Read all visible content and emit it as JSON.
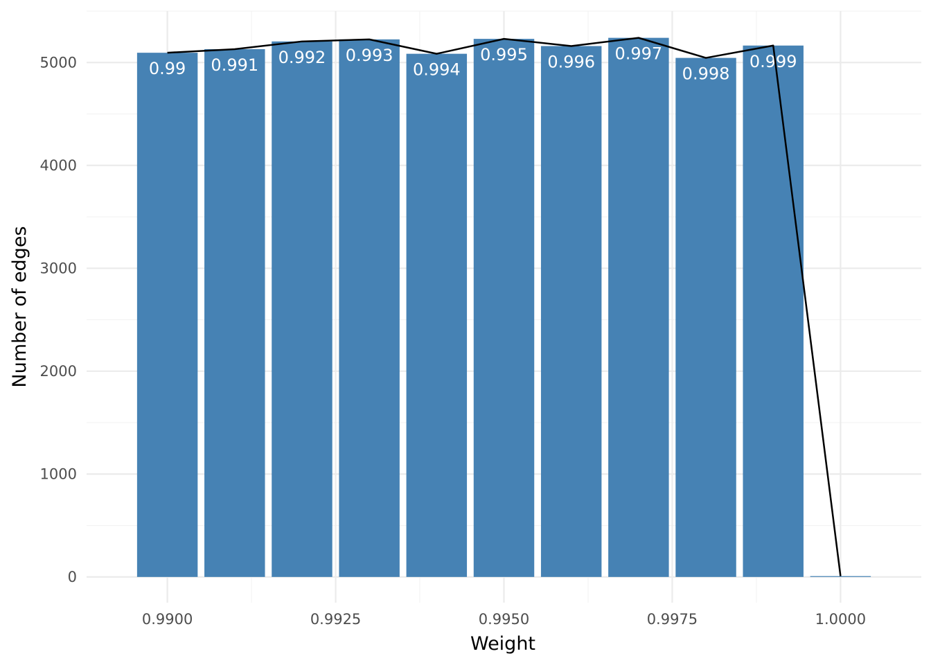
{
  "chart_data": {
    "type": "bar",
    "xlabel": "Weight",
    "ylabel": "Number of edges",
    "xlim": [
      0.9888,
      1.0012
    ],
    "ylim": [
      -250,
      5500
    ],
    "bar_width": 0.0009,
    "x_ticks": [
      {
        "value": 0.99,
        "label": "0.9900"
      },
      {
        "value": 0.9925,
        "label": "0.9925"
      },
      {
        "value": 0.995,
        "label": "0.9950"
      },
      {
        "value": 0.9975,
        "label": "0.9975"
      },
      {
        "value": 1.0,
        "label": "1.0000"
      }
    ],
    "x_minor_ticks": [
      0.99125,
      0.99375,
      0.99625,
      0.99875
    ],
    "y_ticks": [
      {
        "value": 0,
        "label": "0"
      },
      {
        "value": 1000,
        "label": "1000"
      },
      {
        "value": 2000,
        "label": "2000"
      },
      {
        "value": 3000,
        "label": "3000"
      },
      {
        "value": 4000,
        "label": "4000"
      },
      {
        "value": 5000,
        "label": "5000"
      }
    ],
    "y_minor_ticks": [
      500,
      1500,
      2500,
      3500,
      4500,
      5500
    ],
    "grid": true,
    "bars": [
      {
        "x": 0.99,
        "value": 5095,
        "label": "0.99"
      },
      {
        "x": 0.991,
        "value": 5130,
        "label": "0.991"
      },
      {
        "x": 0.992,
        "value": 5205,
        "label": "0.992"
      },
      {
        "x": 0.993,
        "value": 5225,
        "label": "0.993"
      },
      {
        "x": 0.994,
        "value": 5085,
        "label": "0.994"
      },
      {
        "x": 0.995,
        "value": 5230,
        "label": "0.995"
      },
      {
        "x": 0.996,
        "value": 5160,
        "label": "0.996"
      },
      {
        "x": 0.997,
        "value": 5240,
        "label": "0.997"
      },
      {
        "x": 0.998,
        "value": 5045,
        "label": "0.998"
      },
      {
        "x": 0.999,
        "value": 5165,
        "label": "0.999"
      },
      {
        "x": 1.0,
        "value": 8,
        "label": ""
      }
    ],
    "line": {
      "x": [
        0.99,
        0.991,
        0.992,
        0.993,
        0.994,
        0.995,
        0.996,
        0.997,
        0.998,
        0.999,
        1.0
      ],
      "y": [
        5095,
        5130,
        5205,
        5225,
        5085,
        5230,
        5160,
        5240,
        5045,
        5165,
        8
      ]
    },
    "colors": {
      "bar": "#4682b4",
      "line": "#000000",
      "bar_label": "#ffffff",
      "grid_major": "#ebebeb",
      "grid_minor": "#f3f3f3"
    }
  }
}
